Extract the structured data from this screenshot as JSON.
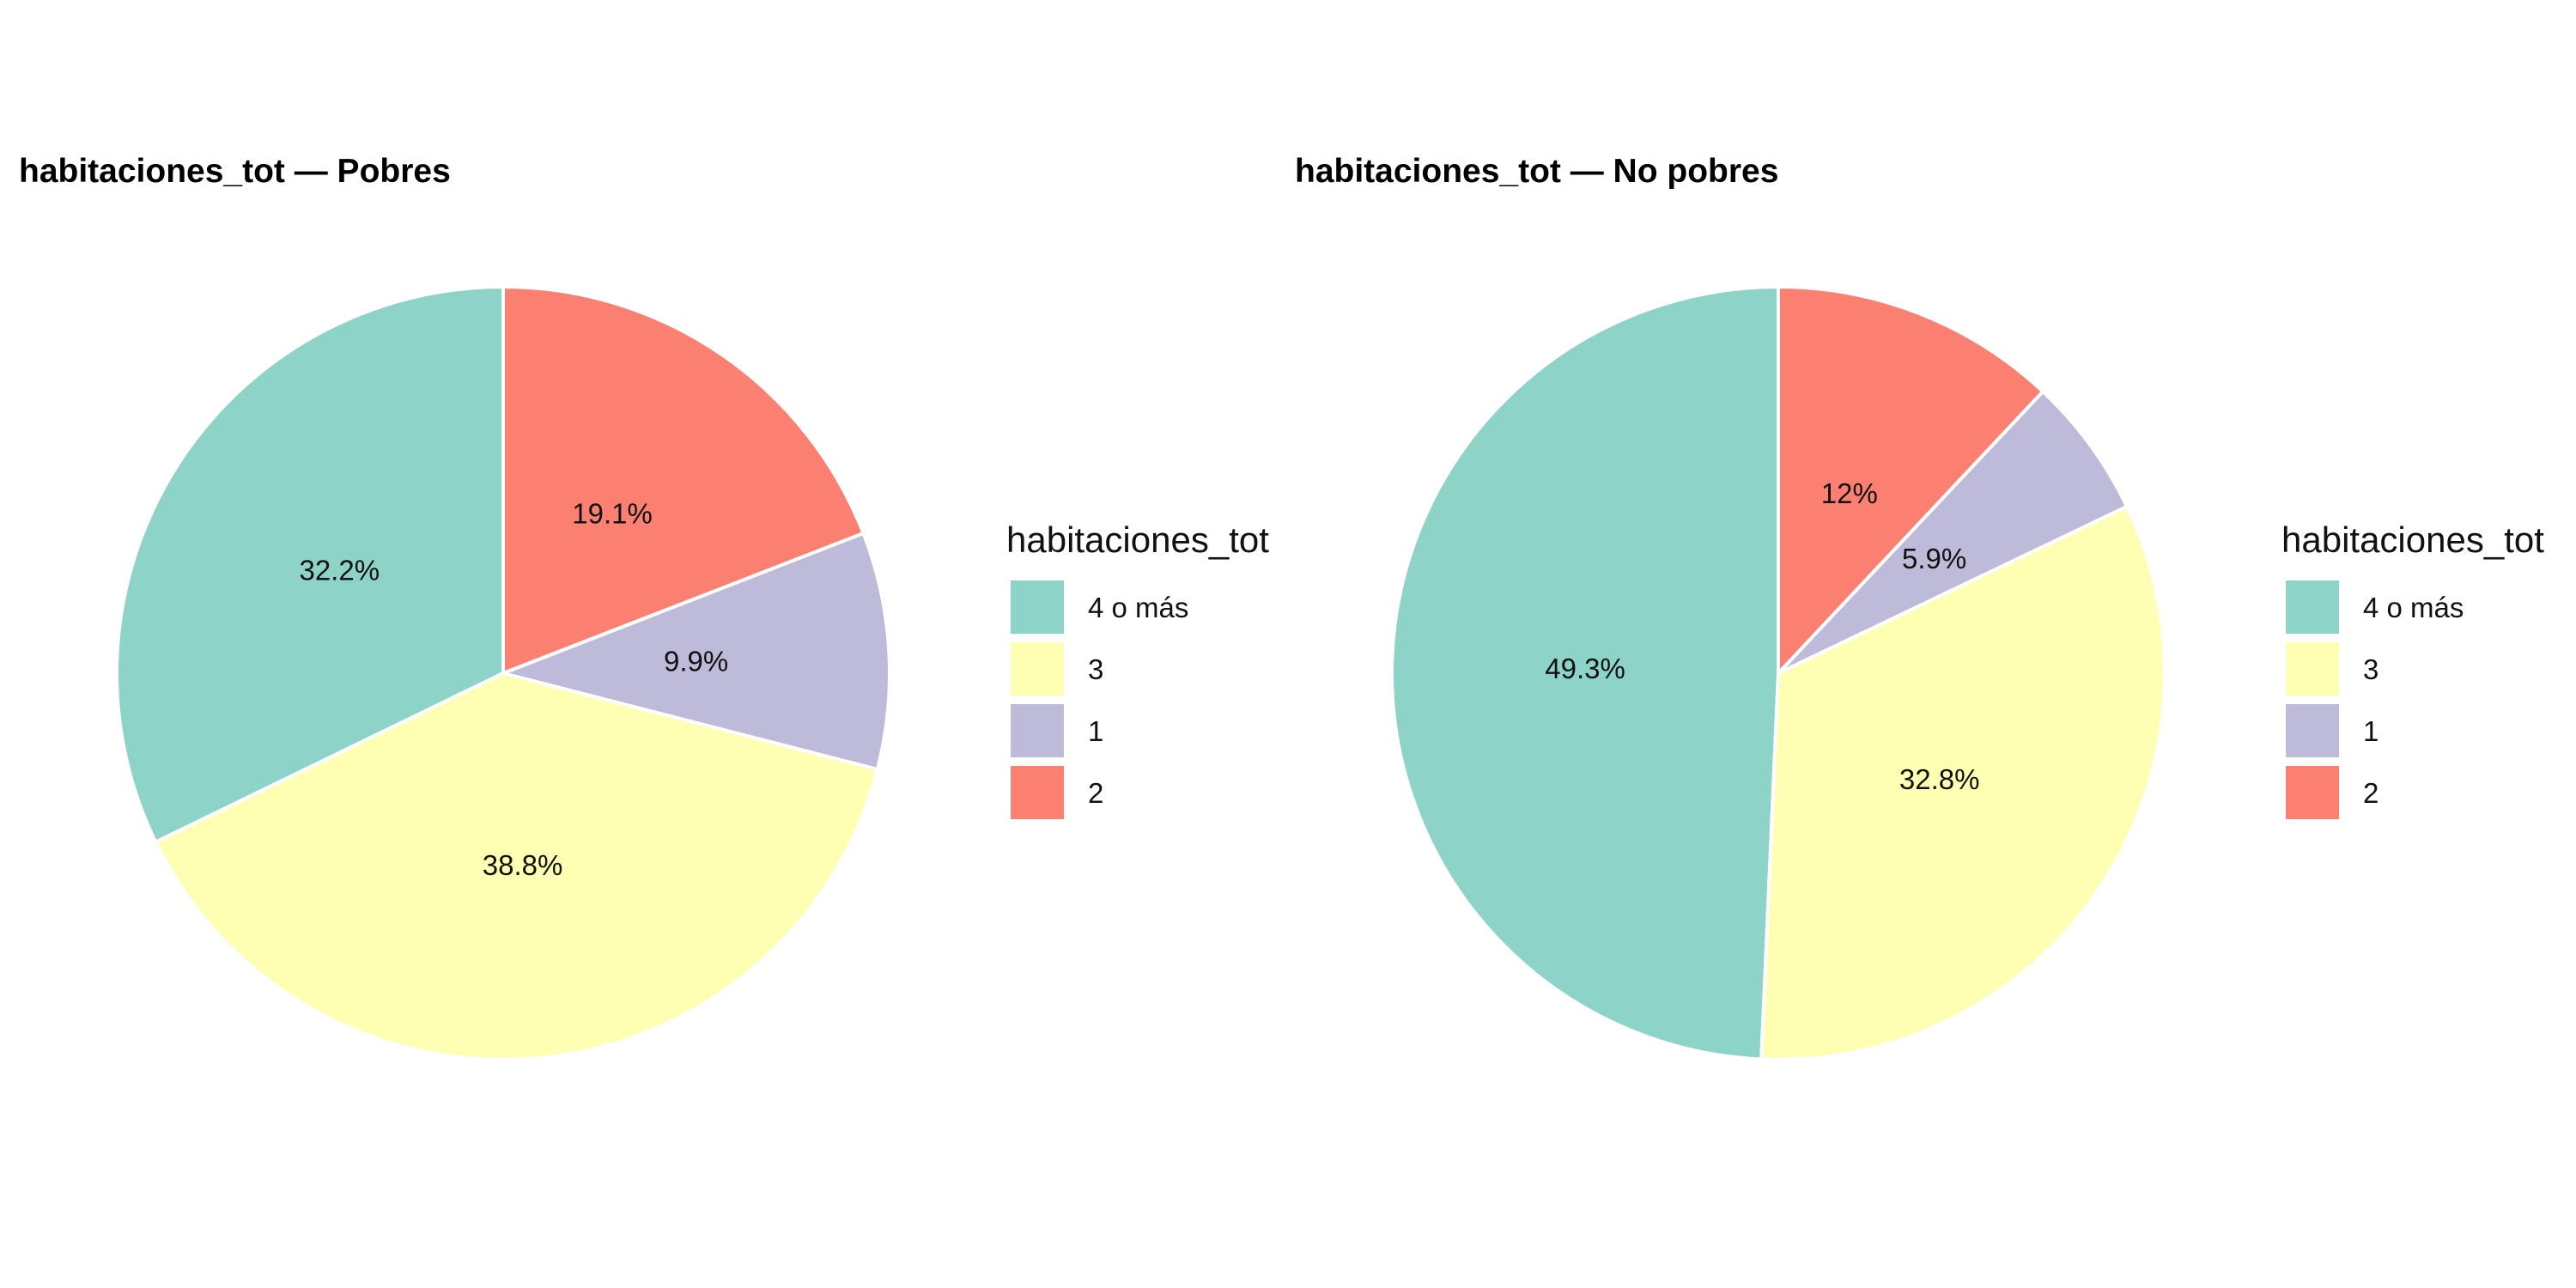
{
  "chart_data": [
    {
      "type": "pie",
      "title": "habitaciones_tot — Pobres",
      "legend_title": "habitaciones_tot",
      "legend_position": "right",
      "categories": [
        "4 o más",
        "3",
        "1",
        "2"
      ],
      "values": [
        32.2,
        38.8,
        9.9,
        19.1
      ],
      "labels": [
        "32.2%",
        "38.8%",
        "9.9%",
        "19.1%"
      ],
      "colors": [
        "#8dd3c7",
        "#ffffb3",
        "#bebada",
        "#fb8072"
      ]
    },
    {
      "type": "pie",
      "title": "habitaciones_tot — No pobres",
      "legend_title": "habitaciones_tot",
      "legend_position": "right",
      "categories": [
        "4 o más",
        "3",
        "1",
        "2"
      ],
      "values": [
        49.3,
        32.8,
        5.9,
        12.0
      ],
      "labels": [
        "49.3%",
        "32.8%",
        "5.9%",
        "12%"
      ],
      "colors": [
        "#8dd3c7",
        "#ffffb3",
        "#bebada",
        "#fb8072"
      ]
    }
  ]
}
